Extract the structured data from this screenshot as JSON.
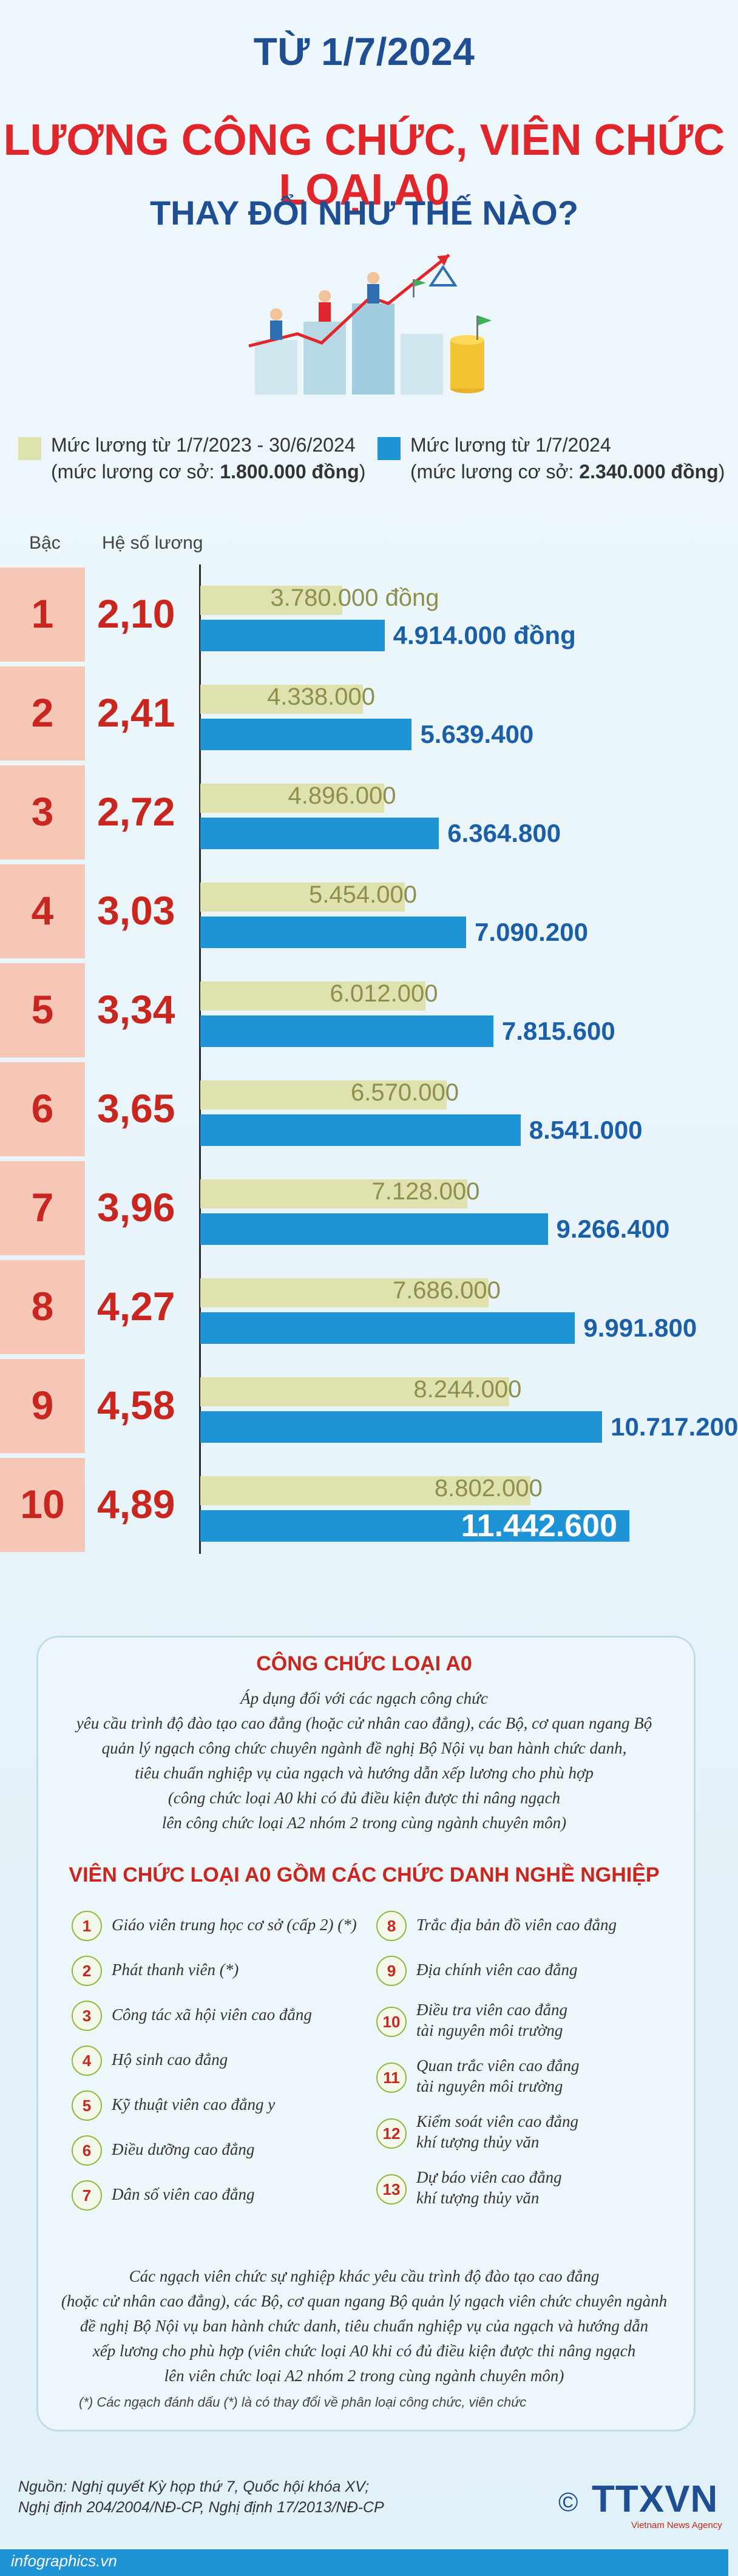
{
  "header": {
    "date_line": "TỪ 1/7/2024",
    "title_line": "LƯƠNG CÔNG CHỨC, VIÊN CHỨC LOẠI A0",
    "subtitle_line": "THAY ĐỔI NHƯ THẾ NÀO?"
  },
  "legend": {
    "old_label": "Mức lương từ 1/7/2023 - 30/6/2024",
    "old_base": "(mức lương cơ sở: ",
    "old_base_value": "1.800.000 đồng",
    "old_base_end": ")",
    "new_label": "Mức lương từ 1/7/2024",
    "new_base": "(mức lương cơ sở: ",
    "new_base_value": "2.340.000 đồng",
    "new_base_end": ")",
    "old_color": "#dfe1ae",
    "new_color": "#1e93d6"
  },
  "columns": {
    "grade": "Bậc",
    "coef": "Hệ số lương"
  },
  "chart_data": {
    "type": "bar",
    "orientation": "horizontal",
    "categories": [
      "1",
      "2",
      "3",
      "4",
      "5",
      "6",
      "7",
      "8",
      "9",
      "10"
    ],
    "coefficients": [
      "2,10",
      "2,41",
      "2,72",
      "3,03",
      "3,34",
      "3,65",
      "3,96",
      "4,27",
      "4,58",
      "4,89"
    ],
    "series": [
      {
        "name": "Mức lương từ 1/7/2023 - 30/6/2024",
        "values": [
          3780000,
          4338000,
          4896000,
          5454000,
          6012000,
          6570000,
          7128000,
          7686000,
          8244000,
          8802000
        ],
        "labels": [
          "3.780.000 đồng",
          "4.338.000",
          "4.896.000",
          "5.454.000",
          "6.012.000",
          "6.570.000",
          "7.128.000",
          "7.686.000",
          "8.244.000",
          "8.802.000"
        ]
      },
      {
        "name": "Mức lương từ 1/7/2024",
        "values": [
          4914000,
          5639400,
          6364800,
          7090200,
          7815600,
          8541000,
          9266400,
          9991800,
          10717200,
          11442600
        ],
        "labels": [
          "4.914.000 đồng",
          "5.639.400",
          "6.364.800",
          "7.090.200",
          "7.815.600",
          "8.541.000",
          "9.266.400",
          "9.991.800",
          "10.717.200",
          "11.442.600"
        ]
      }
    ],
    "xlim": [
      0,
      11442600
    ]
  },
  "panel": {
    "title1": "CÔNG CHỨC LOẠI A0",
    "para1": [
      "Áp dụng đối với các ngạch công chức",
      "yêu cầu trình độ đào tạo cao đẳng (hoặc cử nhân cao đẳng), các Bộ, cơ quan ngang Bộ",
      "quản lý ngạch công chức chuyên ngành đề nghị Bộ Nội vụ ban hành chức danh,",
      "tiêu chuẩn nghiệp vụ của ngạch và hướng dẫn xếp lương cho phù hợp",
      "(công chức loại A0 khi có đủ điều kiện được thi nâng ngạch",
      "lên công chức loại A2 nhóm 2 trong cùng ngành chuyên môn)"
    ],
    "title2": "VIÊN CHỨC LOẠI A0 GỒM CÁC CHỨC DANH NGHỀ NGHIỆP",
    "left_items": [
      {
        "n": "1",
        "lines": [
          "Giáo viên trung học cơ sở (cấp 2) (*)"
        ]
      },
      {
        "n": "2",
        "lines": [
          "Phát thanh viên (*)"
        ]
      },
      {
        "n": "3",
        "lines": [
          "Công tác xã hội viên cao đẳng"
        ]
      },
      {
        "n": "4",
        "lines": [
          "Hộ sinh cao đẳng"
        ]
      },
      {
        "n": "5",
        "lines": [
          "Kỹ thuật viên cao đẳng y"
        ]
      },
      {
        "n": "6",
        "lines": [
          "Điều dưỡng cao đẳng"
        ]
      },
      {
        "n": "7",
        "lines": [
          "Dân số viên cao đẳng"
        ]
      }
    ],
    "right_items": [
      {
        "n": "8",
        "lines": [
          "Trắc địa bản đồ viên cao đẳng"
        ]
      },
      {
        "n": "9",
        "lines": [
          "Địa chính viên cao đẳng"
        ]
      },
      {
        "n": "10",
        "lines": [
          "Điều tra viên cao đẳng",
          "tài nguyên môi trường"
        ]
      },
      {
        "n": "11",
        "lines": [
          "Quan trắc viên cao đẳng",
          "tài nguyên môi trường"
        ]
      },
      {
        "n": "12",
        "lines": [
          "Kiểm soát viên cao đẳng",
          "khí tượng thủy văn"
        ]
      },
      {
        "n": "13",
        "lines": [
          "Dự báo viên cao đẳng",
          "khí tượng thủy văn"
        ]
      }
    ],
    "para2": [
      "Các ngạch viên chức sự nghiệp khác yêu cầu trình độ đào tạo cao đẳng",
      "(hoặc cử nhân cao đẳng), các Bộ, cơ quan ngang Bộ quản lý ngạch viên chức chuyên ngành",
      "đề nghị Bộ Nội vụ ban hành chức danh, tiêu chuẩn nghiệp vụ của ngạch và hướng dẫn",
      "xếp lương cho phù hợp (viên chức loại A0 khi có đủ điều kiện được thi nâng ngạch",
      "lên viên chức loại A2 nhóm 2 trong cùng ngành chuyên môn)"
    ],
    "note": "(*) Các ngạch đánh dấu (*) là có thay đổi về phân loại công chức, viên chức"
  },
  "footer": {
    "source_line1": "Nguồn: Nghị quyết Kỳ họp thứ 7, Quốc hội khóa XV;",
    "source_line2": "Nghị định 204/2004/NĐ-CP, Nghị định 17/2013/NĐ-CP",
    "brand": "infographics.vn",
    "copyright": "©",
    "logo_text": "TTXVN",
    "logo_sub": "Vietnam News Agency"
  }
}
